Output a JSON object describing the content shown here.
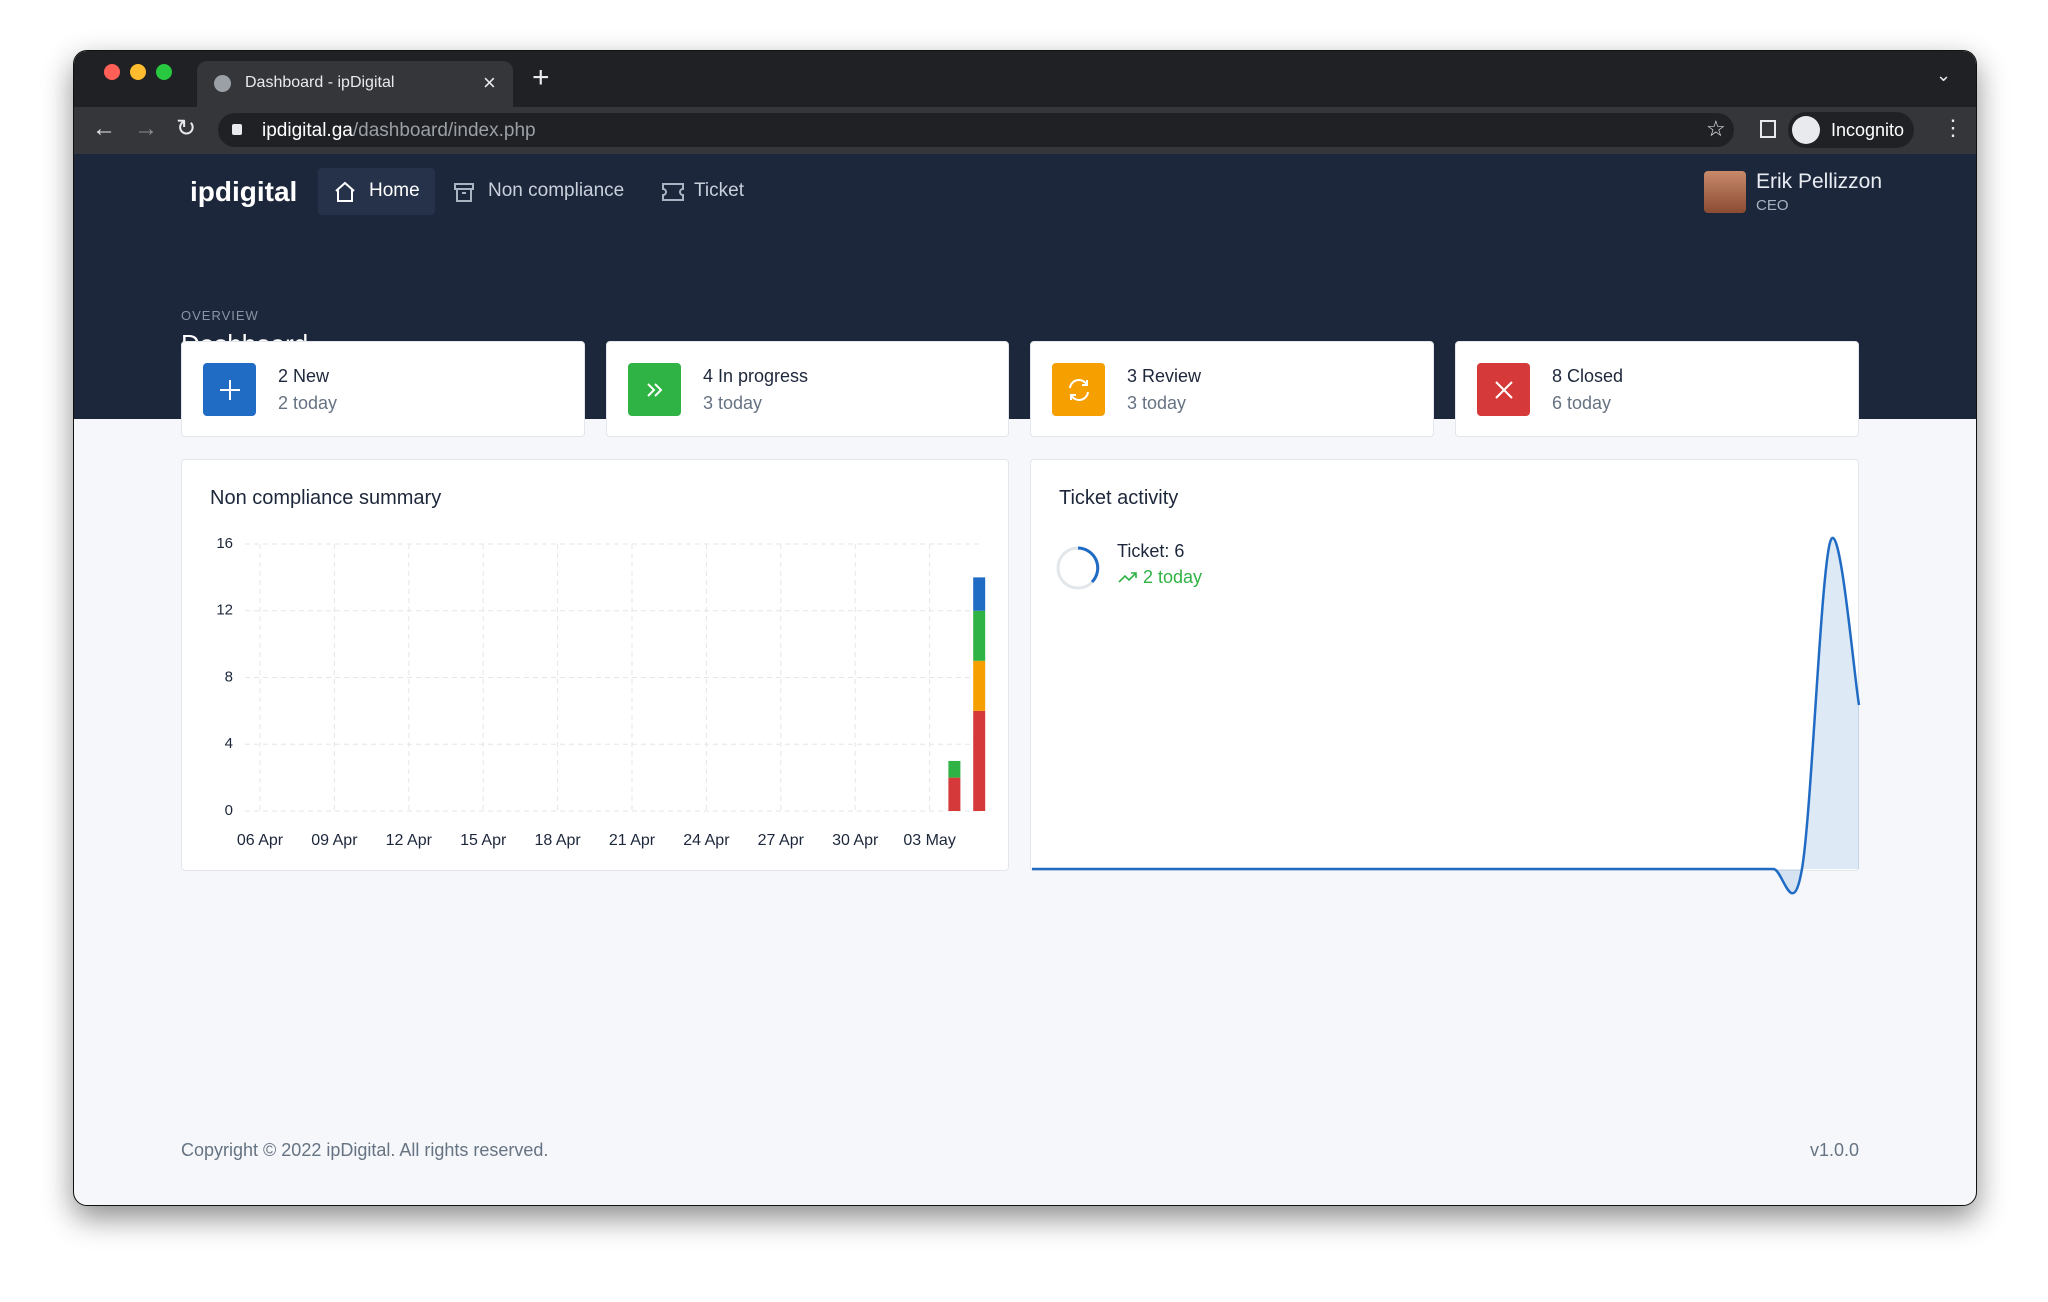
{
  "browser": {
    "tab_title": "Dashboard - ipDigital",
    "url_host": "ipdigital.ga",
    "url_path": "/dashboard/index.php",
    "profile": "Incognito"
  },
  "nav": {
    "logo": "ipdigital",
    "items": [
      "Home",
      "Non compliance",
      "Ticket"
    ]
  },
  "user": {
    "name": "Erik Pellizzon",
    "role": "CEO"
  },
  "header": {
    "overline": "OVERVIEW",
    "title": "Dashboard"
  },
  "stats": [
    {
      "label": "2 New",
      "sub": "2 today"
    },
    {
      "label": "4 In progress",
      "sub": "3 today"
    },
    {
      "label": "3 Review",
      "sub": "3 today"
    },
    {
      "label": "8 Closed",
      "sub": "6 today"
    }
  ],
  "panels": {
    "left_title": "Non compliance summary",
    "right_title": "Ticket activity",
    "ticket_label": "Ticket: 6",
    "ticket_today": "2 today"
  },
  "footer": {
    "copyright": "Copyright © 2022 ipDigital. All rights reserved.",
    "version": "v1.0.0"
  },
  "chart_data": [
    {
      "type": "stacked-bar",
      "categories": [
        "06 Apr",
        null,
        null,
        "09 Apr",
        null,
        null,
        "12 Apr",
        null,
        null,
        "15 Apr",
        null,
        null,
        "18 Apr",
        null,
        null,
        "21 Apr",
        null,
        null,
        "24 Apr",
        null,
        null,
        "27 Apr",
        null,
        null,
        "30 Apr",
        null,
        null,
        "03 May",
        null,
        null
      ],
      "series": [
        {
          "color": "#d63939",
          "values": [
            0,
            0,
            0,
            0,
            0,
            0,
            0,
            0,
            0,
            0,
            0,
            0,
            0,
            0,
            0,
            0,
            0,
            0,
            0,
            0,
            0,
            0,
            0,
            0,
            0,
            0,
            0,
            0,
            2,
            6
          ]
        },
        {
          "color": "#f59f00",
          "values": [
            0,
            0,
            0,
            0,
            0,
            0,
            0,
            0,
            0,
            0,
            0,
            0,
            0,
            0,
            0,
            0,
            0,
            0,
            0,
            0,
            0,
            0,
            0,
            0,
            0,
            0,
            0,
            0,
            0,
            3
          ]
        },
        {
          "color": "#2fb344",
          "values": [
            0,
            0,
            0,
            0,
            0,
            0,
            0,
            0,
            0,
            0,
            0,
            0,
            0,
            0,
            0,
            0,
            0,
            0,
            0,
            0,
            0,
            0,
            0,
            0,
            0,
            0,
            0,
            0,
            1,
            3
          ]
        },
        {
          "color": "#206bc4",
          "values": [
            0,
            0,
            0,
            0,
            0,
            0,
            0,
            0,
            0,
            0,
            0,
            0,
            0,
            0,
            0,
            0,
            0,
            0,
            0,
            0,
            0,
            0,
            0,
            0,
            0,
            0,
            0,
            0,
            0,
            2
          ]
        }
      ],
      "ylim": [
        0,
        16
      ],
      "yticks": [
        0,
        4,
        8,
        12,
        16
      ],
      "grid": true
    },
    {
      "type": "area",
      "color": "#206bc4",
      "values": [
        0,
        0,
        0,
        0,
        0,
        0,
        0,
        0,
        0,
        0,
        0,
        0,
        0,
        0,
        0,
        0,
        0,
        0,
        0,
        0,
        0,
        0,
        0,
        0,
        0,
        0,
        0,
        0,
        4,
        2
      ],
      "ylim": [
        0,
        4
      ]
    }
  ]
}
